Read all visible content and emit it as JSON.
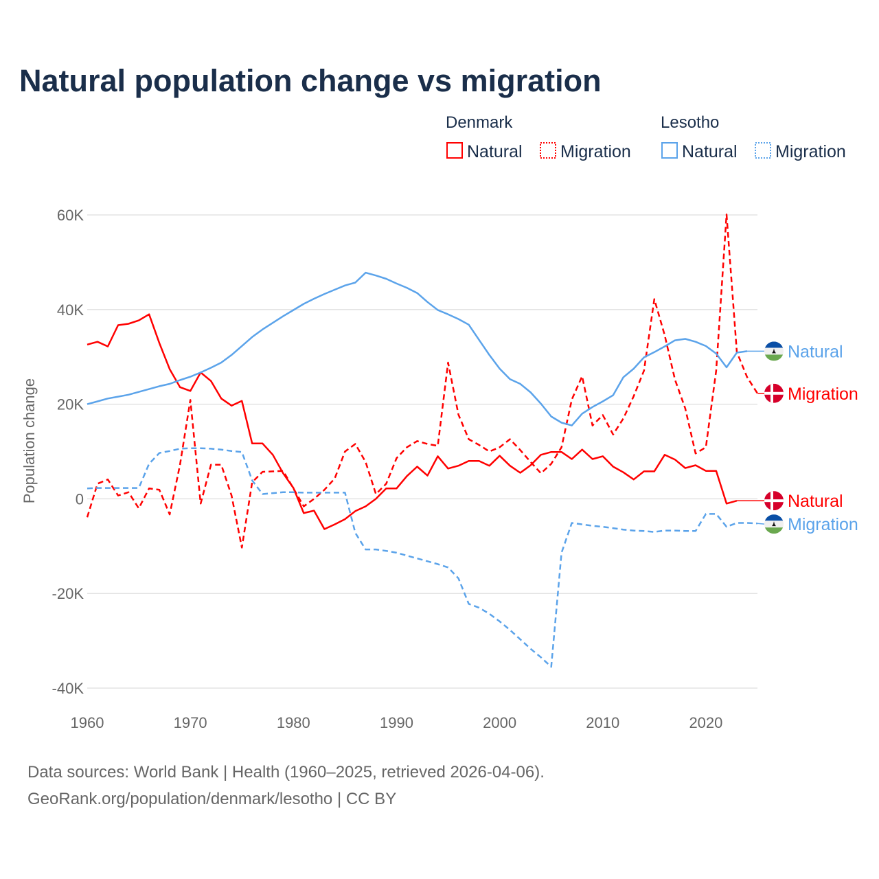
{
  "chart_data": {
    "type": "line",
    "title": "Natural population change vs migration",
    "xlabel": "",
    "ylabel": "Population change",
    "xlim": [
      1960,
      2025
    ],
    "ylim": [
      -40000,
      60000
    ],
    "y_ticks": [
      {
        "v": 60000,
        "label": "60K"
      },
      {
        "v": 40000,
        "label": "40K"
      },
      {
        "v": 20000,
        "label": "20K"
      },
      {
        "v": 0,
        "label": "0"
      },
      {
        "v": -20000,
        "label": "-20K"
      },
      {
        "v": -40000,
        "label": "-40K"
      }
    ],
    "x_ticks": [
      {
        "v": 1960,
        "label": "1960"
      },
      {
        "v": 1970,
        "label": "1970"
      },
      {
        "v": 1980,
        "label": "1980"
      },
      {
        "v": 1990,
        "label": "1990"
      },
      {
        "v": 2000,
        "label": "2000"
      },
      {
        "v": 2010,
        "label": "2010"
      },
      {
        "v": 2020,
        "label": "2020"
      }
    ],
    "grid": true,
    "legend": {
      "placement": "top-right",
      "groups": [
        {
          "country": "Denmark",
          "items": [
            "Natural",
            "Migration"
          ]
        },
        {
          "country": "Lesotho",
          "items": [
            "Natural",
            "Migration"
          ]
        }
      ]
    },
    "start_year": 1960,
    "series": [
      {
        "name": "Denmark Natural",
        "country": "Denmark",
        "kind": "Natural",
        "label": "Natural",
        "flag": "denmark-flag",
        "color": "#ff0000",
        "dashed": false,
        "values": [
          32600,
          33200,
          32200,
          36700,
          37000,
          37700,
          39000,
          32900,
          27400,
          23600,
          22800,
          26700,
          24900,
          21200,
          19700,
          20700,
          11700,
          11700,
          9300,
          5400,
          2300,
          -3000,
          -2500,
          -6400,
          -5400,
          -4300,
          -2600,
          -1600,
          0,
          2200,
          2200,
          4800,
          6800,
          4900,
          9000,
          6400,
          7000,
          8000,
          8000,
          7000,
          9100,
          7000,
          5500,
          7100,
          9300,
          9900,
          9900,
          8400,
          10400,
          8400,
          9000,
          6800,
          5600,
          4100,
          5800,
          5800,
          9300,
          8300,
          6500,
          7100,
          5900,
          5900,
          -1000,
          -400
        ]
      },
      {
        "name": "Denmark Migration",
        "country": "Denmark",
        "kind": "Migration",
        "label": "Migration",
        "flag": "denmark-flag",
        "color": "#ff0000",
        "dashed": true,
        "values": [
          -3900,
          3200,
          4100,
          700,
          1400,
          -2000,
          2200,
          1900,
          -3300,
          7200,
          20900,
          -1000,
          7200,
          7200,
          700,
          -10300,
          3500,
          5700,
          5800,
          5900,
          2200,
          -1600,
          0,
          1900,
          4300,
          10000,
          11600,
          7800,
          1000,
          3200,
          8600,
          10900,
          12200,
          11600,
          11200,
          28800,
          17800,
          12600,
          11400,
          10000,
          10900,
          12600,
          10300,
          7800,
          5400,
          7400,
          10900,
          21000,
          25900,
          15500,
          17700,
          13600,
          17000,
          21700,
          27100,
          42200,
          34600,
          25200,
          19100,
          9600,
          10900,
          27100,
          60100,
          31000,
          25700,
          22300
        ]
      },
      {
        "name": "Lesotho Natural",
        "country": "Lesotho",
        "kind": "Natural",
        "label": "Natural",
        "flag": "lesotho-flag",
        "color": "#5ba3ea",
        "dashed": false,
        "values": [
          20000,
          20600,
          21200,
          21600,
          22000,
          22600,
          23200,
          23800,
          24300,
          25100,
          25800,
          26700,
          27700,
          28800,
          30400,
          32300,
          34200,
          35800,
          37200,
          38600,
          39900,
          41200,
          42300,
          43300,
          44200,
          45100,
          45700,
          47800,
          47200,
          46500,
          45500,
          44600,
          43500,
          41600,
          39900,
          39000,
          38000,
          36800,
          33600,
          30400,
          27500,
          25300,
          24300,
          22500,
          20100,
          17400,
          16100,
          15500,
          18000,
          19400,
          20600,
          21900,
          25700,
          27500,
          29900,
          31000,
          32200,
          33500,
          33800,
          33200,
          32300,
          30700,
          27800,
          30900,
          31200
        ]
      },
      {
        "name": "Lesotho Migration",
        "country": "Lesotho",
        "kind": "Migration",
        "label": "Migration",
        "flag": "lesotho-flag",
        "color": "#5ba3ea",
        "dashed": true,
        "values": [
          2200,
          2300,
          2300,
          2300,
          2300,
          2300,
          7400,
          9700,
          10100,
          10600,
          10700,
          10700,
          10600,
          10400,
          10100,
          9900,
          3900,
          1000,
          1200,
          1400,
          1400,
          1300,
          1300,
          1300,
          1300,
          1300,
          -7200,
          -10700,
          -10700,
          -11000,
          -11400,
          -12000,
          -12600,
          -13200,
          -13800,
          -14500,
          -16800,
          -22200,
          -23000,
          -24300,
          -25900,
          -27700,
          -29700,
          -31700,
          -33500,
          -35500,
          -11400,
          -5100,
          -5400,
          -5700,
          -5900,
          -6200,
          -6500,
          -6700,
          -6800,
          -7000,
          -6700,
          -6700,
          -6800,
          -6800,
          -3200,
          -3200,
          -5900,
          -5100,
          -5100,
          -5200
        ]
      }
    ]
  },
  "footer": {
    "line1": "Data sources: World Bank | Health (1960–2025, retrieved 2026-04-06).",
    "line2": "GeoRank.org/population/denmark/lesotho | CC BY"
  }
}
